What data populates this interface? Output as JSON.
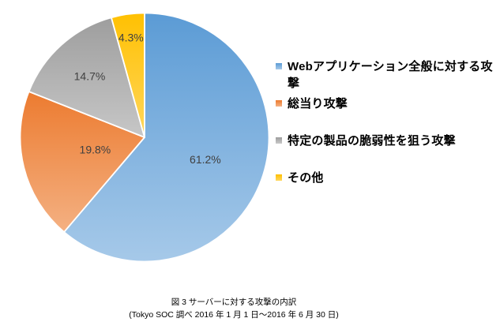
{
  "chart_data": {
    "type": "pie",
    "title": "",
    "legend_position": "right",
    "grid": false,
    "start_angle_deg": 0,
    "direction": "clockwise",
    "percent_label_color": "#404040",
    "slices": [
      {
        "label": "Webアプリケーション全般に対する攻撃",
        "value": 61.2,
        "percent_label": "61.2%",
        "color": "#5B9BD5",
        "color_light": "#A6C9E9"
      },
      {
        "label": "総当り攻撃",
        "value": 19.8,
        "percent_label": "19.8%",
        "color": "#EC7A2E",
        "color_light": "#F4B183"
      },
      {
        "label": "特定の製品の脆弱性を狙う攻撃",
        "value": 14.7,
        "percent_label": "14.7%",
        "color": "#9D9D9D",
        "color_light": "#C8C8C8"
      },
      {
        "label": "その他",
        "value": 4.3,
        "percent_label": "4.3%",
        "color": "#FFC000",
        "color_light": "#FFD75E"
      }
    ]
  },
  "caption": {
    "line1": "図 3 サーバーに対する攻撃の内訳",
    "line2": "(Tokyo SOC 調べ 2016 年 1 月 1 日〜2016 年 6 月 30 日)"
  }
}
